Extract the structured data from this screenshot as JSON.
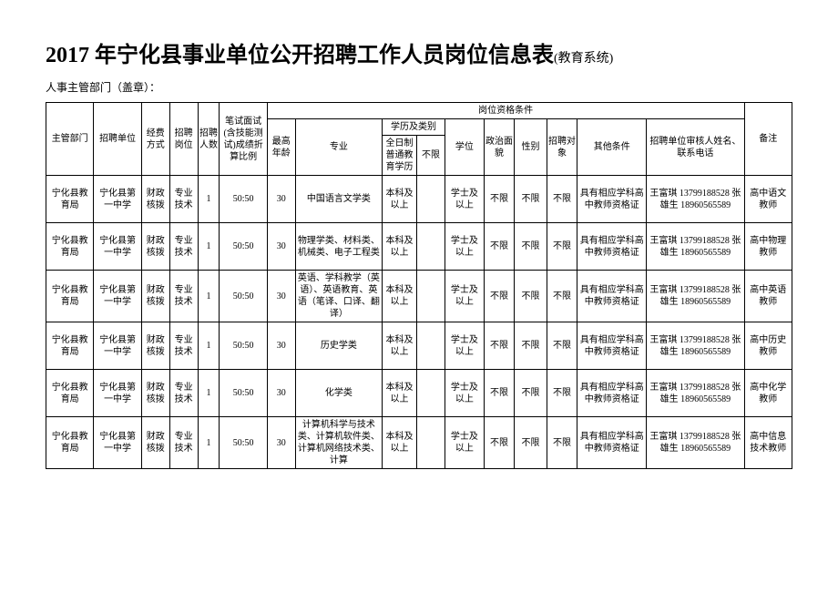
{
  "title_main": "2017 年宁化县事业单位公开招聘工作人员岗位信息表",
  "title_suffix": "(教育系统)",
  "subtitle": "人事主管部门（盖章）：",
  "headers": {
    "dept": "主管部门",
    "unit": "招聘单位",
    "fund": "经费方式",
    "post": "招聘岗位",
    "count": "招聘人数",
    "ratio": "笔试面试(含技能测试)成绩折算比例",
    "qual_group": "岗位资格条件",
    "age": "最高年龄",
    "major": "专业",
    "edu_group": "学历及类别",
    "ft": "全日制普通教育学历",
    "unlimit": "不限",
    "degree": "学位",
    "pol": "政治面貌",
    "gender": "性别",
    "target": "招聘对象",
    "other": "其他条件",
    "contact": "招聘单位审核人姓名、联系电话",
    "note": "备注"
  },
  "rows": [
    {
      "dept": "宁化县教育局",
      "unit": "宁化县第一中学",
      "fund": "财政核拨",
      "post": "专业技术",
      "count": "1",
      "ratio": "50:50",
      "age": "30",
      "major": "中国语言文学类",
      "ft": "本科及以上",
      "unlimit": "",
      "degree": "学士及以上",
      "pol": "不限",
      "gender": "不限",
      "target": "不限",
      "other": "具有相应学科高中教师资格证",
      "contact": "王富琪 13799188528 张雄生 18960565589",
      "note": "高中语文教师"
    },
    {
      "dept": "宁化县教育局",
      "unit": "宁化县第一中学",
      "fund": "财政核拨",
      "post": "专业技术",
      "count": "1",
      "ratio": "50:50",
      "age": "30",
      "major": "物理学类、材料类、机械类、电子工程类",
      "ft": "本科及以上",
      "unlimit": "",
      "degree": "学士及以上",
      "pol": "不限",
      "gender": "不限",
      "target": "不限",
      "other": "具有相应学科高中教师资格证",
      "contact": "王富琪 13799188528 张雄生 18960565589",
      "note": "高中物理教师"
    },
    {
      "dept": "宁化县教育局",
      "unit": "宁化县第一中学",
      "fund": "财政核拨",
      "post": "专业技术",
      "count": "1",
      "ratio": "50:50",
      "age": "30",
      "major": "英语、学科教学（英语）、英语教育、英语（笔译、口译、翻译）",
      "ft": "本科及以上",
      "unlimit": "",
      "degree": "学士及以上",
      "pol": "不限",
      "gender": "不限",
      "target": "不限",
      "other": "具有相应学科高中教师资格证",
      "contact": "王富琪 13799188528 张雄生 18960565589",
      "note": "高中英语教师"
    },
    {
      "dept": "宁化县教育局",
      "unit": "宁化县第一中学",
      "fund": "财政核拨",
      "post": "专业技术",
      "count": "1",
      "ratio": "50:50",
      "age": "30",
      "major": "历史学类",
      "ft": "本科及以上",
      "unlimit": "",
      "degree": "学士及以上",
      "pol": "不限",
      "gender": "不限",
      "target": "不限",
      "other": "具有相应学科高中教师资格证",
      "contact": "王富琪 13799188528 张雄生 18960565589",
      "note": "高中历史教师"
    },
    {
      "dept": "宁化县教育局",
      "unit": "宁化县第一中学",
      "fund": "财政核拨",
      "post": "专业技术",
      "count": "1",
      "ratio": "50:50",
      "age": "30",
      "major": "化学类",
      "ft": "本科及以上",
      "unlimit": "",
      "degree": "学士及以上",
      "pol": "不限",
      "gender": "不限",
      "target": "不限",
      "other": "具有相应学科高中教师资格证",
      "contact": "王富琪 13799188528 张雄生 18960565589",
      "note": "高中化学教师"
    },
    {
      "dept": "宁化县教育局",
      "unit": "宁化县第一中学",
      "fund": "财政核拨",
      "post": "专业技术",
      "count": "1",
      "ratio": "50:50",
      "age": "30",
      "major": "计算机科学与技术类、计算机软件类、计算机网络技术类、计算",
      "ft": "本科及以上",
      "unlimit": "",
      "degree": "学士及以上",
      "pol": "不限",
      "gender": "不限",
      "target": "不限",
      "other": "具有相应学科高中教师资格证",
      "contact": "王富琪 13799188528 张雄生 18960565589",
      "note": "高中信息技术教师"
    }
  ]
}
